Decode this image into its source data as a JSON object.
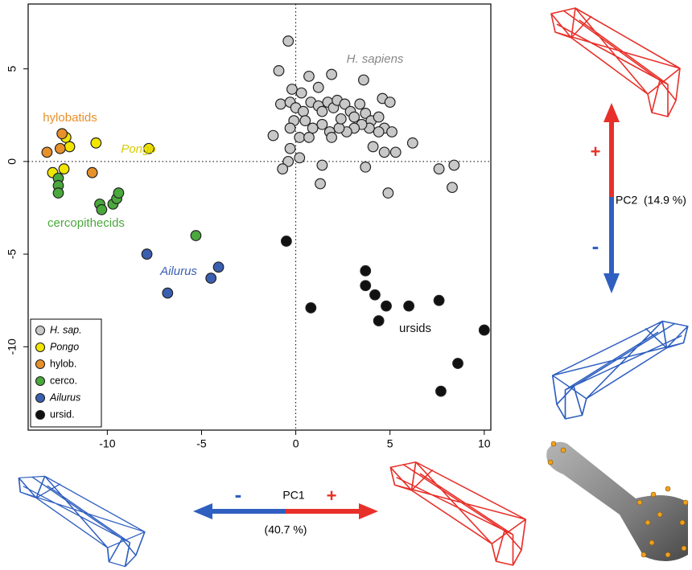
{
  "chart_data": {
    "type": "scatter",
    "xlim": [
      -14.2,
      10.35
    ],
    "ylim": [
      -14.5,
      8.5
    ],
    "xticks": [
      -10,
      -5,
      0,
      5,
      10
    ],
    "yticks": [
      -10,
      -5,
      0,
      5
    ],
    "zero_lines": true,
    "legend": "bottom-left",
    "series": [
      {
        "name": "H. sap.",
        "color": "#c8c8c8",
        "x": [
          -0.4,
          -0.9,
          0.7,
          1.9,
          3.6,
          -0.2,
          0.3,
          1.2,
          -0.8,
          -0.3,
          0.0,
          0.4,
          0.8,
          1.2,
          1.4,
          1.7,
          2.0,
          2.2,
          2.6,
          2.9,
          3.1,
          3.4,
          3.7,
          4.0,
          4.4,
          4.6,
          5.0,
          4.7,
          5.1,
          4.4,
          3.9,
          3.5,
          3.1,
          2.7,
          2.3,
          1.8,
          1.4,
          0.9,
          0.5,
          -0.1,
          -0.3,
          0.2,
          -0.3,
          -0.4,
          -0.7,
          0.2,
          1.4,
          1.9,
          0.7,
          3.7,
          4.1,
          4.7,
          5.3,
          6.2,
          4.9,
          1.3,
          7.6,
          8.4,
          8.3,
          -1.2,
          2.4
        ],
        "y": [
          6.5,
          4.9,
          4.6,
          4.7,
          4.4,
          3.9,
          3.7,
          4.0,
          3.1,
          3.2,
          2.9,
          2.7,
          3.2,
          3.0,
          2.7,
          3.2,
          2.9,
          3.3,
          3.1,
          2.7,
          2.4,
          3.1,
          2.6,
          2.2,
          2.4,
          3.4,
          3.2,
          1.8,
          1.6,
          1.6,
          1.8,
          2.0,
          1.8,
          1.6,
          1.8,
          1.6,
          2.0,
          1.8,
          2.2,
          2.2,
          1.8,
          1.3,
          0.7,
          0.0,
          -0.4,
          0.2,
          -0.2,
          1.3,
          1.3,
          -0.3,
          0.8,
          0.5,
          0.5,
          1.0,
          -1.7,
          -1.2,
          -0.4,
          -0.2,
          -1.4,
          1.4,
          2.3
        ]
      },
      {
        "name": "Pongo",
        "color": "#f2e600",
        "italic": true,
        "x": [
          -10.6,
          -7.8,
          -12.0,
          -12.2,
          -12.9,
          -12.3
        ],
        "y": [
          1.0,
          0.7,
          0.8,
          1.3,
          -0.6,
          -0.4
        ]
      },
      {
        "name": "hylob.",
        "color": "#e8902a",
        "x": [
          -12.4,
          -12.5,
          -13.2,
          -10.8
        ],
        "y": [
          1.5,
          0.7,
          0.5,
          -0.6
        ]
      },
      {
        "name": "cerco.",
        "color": "#4aa83c",
        "x": [
          -12.6,
          -12.6,
          -12.6,
          -10.4,
          -10.3,
          -9.7,
          -9.5,
          -9.4,
          -5.3
        ],
        "y": [
          -0.9,
          -1.3,
          -1.7,
          -2.3,
          -2.6,
          -2.3,
          -2.0,
          -1.7,
          -4.0
        ]
      },
      {
        "name": "Ailurus",
        "color": "#3a5fb0",
        "italic": true,
        "x": [
          -7.9,
          -6.8,
          -4.5,
          -4.1
        ],
        "y": [
          -5.0,
          -7.1,
          -6.3,
          -5.7
        ]
      },
      {
        "name": "ursid.",
        "color": "#111111",
        "x": [
          -0.5,
          0.8,
          3.7,
          3.7,
          4.2,
          4.8,
          4.4,
          6.0,
          7.6,
          10.0,
          8.6,
          7.7
        ],
        "y": [
          -4.3,
          -7.9,
          -5.9,
          -6.7,
          -7.2,
          -7.8,
          -8.6,
          -7.8,
          -7.5,
          -9.1,
          -10.9,
          -12.4
        ]
      }
    ],
    "annotations": [
      {
        "text": "H. sapiens",
        "color": "#888888",
        "italic": true
      },
      {
        "text": "hylobatids",
        "color": "#e8902a",
        "italic": false
      },
      {
        "text": "Pongo",
        "color": "#d6cc00",
        "italic": true
      },
      {
        "text": "cercopithecids",
        "color": "#4aa83c",
        "italic": false
      },
      {
        "text": "Ailurus",
        "color": "#3a5fb0",
        "italic": true
      },
      {
        "text": "ursids",
        "color": "#111111",
        "italic": false
      }
    ],
    "pc1": {
      "label": "PC1",
      "variance": "(40.7 %)",
      "minus": "-",
      "plus": "+"
    },
    "pc2": {
      "label": "PC2",
      "variance": "(14.9 %)",
      "minus": "-",
      "plus": "+"
    }
  }
}
